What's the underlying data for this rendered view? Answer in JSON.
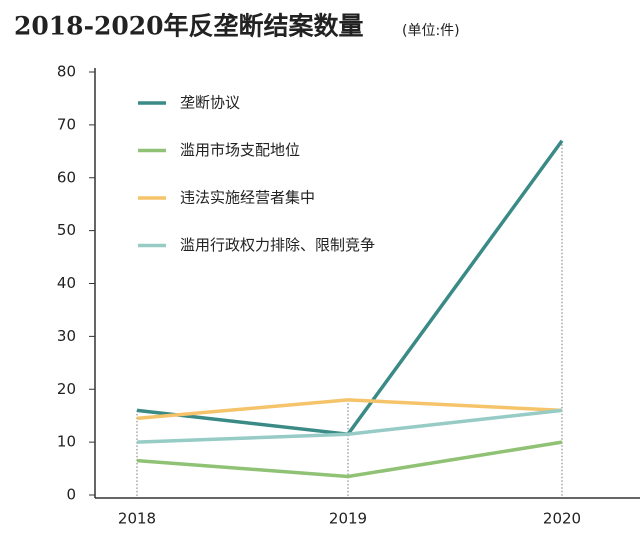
{
  "chart_data": {
    "type": "line",
    "title": "2018-2020年反垄断结案数量",
    "subtitle": "(单位:件)",
    "categories": [
      "2018",
      "2019",
      "2020"
    ],
    "series": [
      {
        "name": "垄断协议",
        "color": "#3a8a86",
        "values": [
          16,
          11.5,
          67
        ]
      },
      {
        "name": "滥用市场支配地位",
        "color": "#8fc274",
        "values": [
          6.5,
          3.5,
          10
        ]
      },
      {
        "name": "违法实施经营者集中",
        "color": "#f5c46a",
        "values": [
          14.5,
          18,
          16
        ]
      },
      {
        "name": "滥用行政权力排除、限制竞争",
        "color": "#96cbc6",
        "values": [
          10,
          11.5,
          16
        ]
      }
    ],
    "ylim": [
      0,
      80
    ],
    "yticks": [
      0,
      10,
      20,
      30,
      40,
      50,
      60,
      70,
      80
    ],
    "legend": "upper-left"
  }
}
